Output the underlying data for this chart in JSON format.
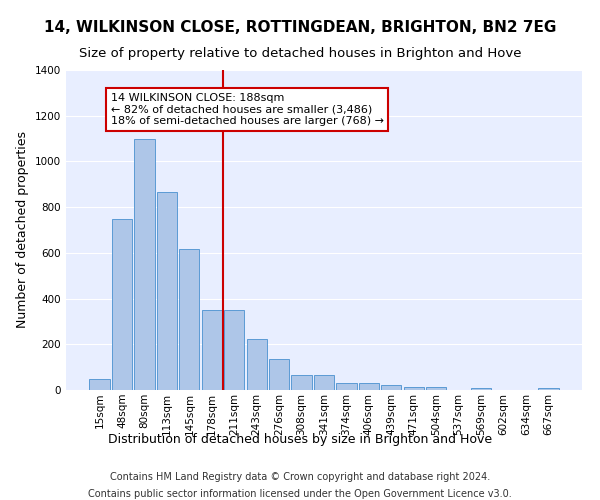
{
  "title": "14, WILKINSON CLOSE, ROTTINGDEAN, BRIGHTON, BN2 7EG",
  "subtitle": "Size of property relative to detached houses in Brighton and Hove",
  "xlabel": "Distribution of detached houses by size in Brighton and Hove",
  "ylabel": "Number of detached properties",
  "footer1": "Contains HM Land Registry data © Crown copyright and database right 2024.",
  "footer2": "Contains public sector information licensed under the Open Government Licence v3.0.",
  "categories": [
    "15sqm",
    "48sqm",
    "80sqm",
    "113sqm",
    "145sqm",
    "178sqm",
    "211sqm",
    "243sqm",
    "276sqm",
    "308sqm",
    "341sqm",
    "374sqm",
    "406sqm",
    "439sqm",
    "471sqm",
    "504sqm",
    "537sqm",
    "569sqm",
    "602sqm",
    "634sqm",
    "667sqm"
  ],
  "values": [
    50,
    750,
    1100,
    865,
    615,
    350,
    350,
    225,
    135,
    65,
    65,
    30,
    30,
    20,
    15,
    15,
    0,
    10,
    0,
    0,
    10
  ],
  "bar_color": "#aec6e8",
  "bar_edge_color": "#5b9bd5",
  "reference_line_x": 5.5,
  "reference_label": "14 WILKINSON CLOSE: 188sqm",
  "annotation_line1": "← 82% of detached houses are smaller (3,486)",
  "annotation_line2": "18% of semi-detached houses are larger (768) →",
  "annotation_box_color": "#ffffff",
  "annotation_box_edge_color": "#cc0000",
  "vline_color": "#cc0000",
  "ylim": [
    0,
    1400
  ],
  "yticks": [
    0,
    200,
    400,
    600,
    800,
    1000,
    1200,
    1400
  ],
  "background_color": "#e8eeff",
  "fig_background_color": "#ffffff",
  "grid_color": "#ffffff",
  "title_fontsize": 11,
  "subtitle_fontsize": 9.5,
  "xlabel_fontsize": 9,
  "ylabel_fontsize": 9,
  "tick_fontsize": 7.5,
  "footer_fontsize": 7,
  "annot_fontsize": 8
}
